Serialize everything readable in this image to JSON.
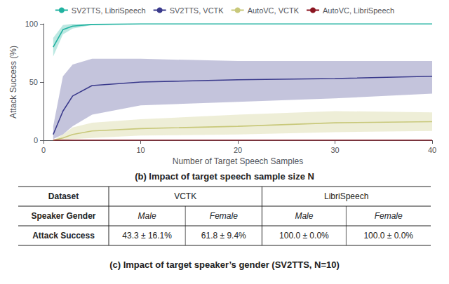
{
  "chart_data": {
    "type": "line",
    "xlabel": "Number of Target Speech Samples",
    "ylabel": "Attack Success (%)",
    "x": [
      1,
      2,
      3,
      5,
      10,
      20,
      30,
      40
    ],
    "series": [
      {
        "name": "SV2TTS, LibriSpeech",
        "color": "#20b2a0",
        "values": [
          80,
          95,
          98,
          99.5,
          100,
          100,
          100,
          100
        ],
        "lower": [
          72,
          91,
          96,
          99,
          100,
          100,
          100,
          100
        ],
        "upper": [
          88,
          99,
          100,
          100,
          100,
          100,
          100,
          100
        ]
      },
      {
        "name": "SV2TTS, VCTK",
        "color": "#3a3a8c",
        "values": [
          5,
          25,
          38,
          47,
          50,
          52,
          53,
          55
        ],
        "lower": [
          1,
          5,
          12,
          22,
          30,
          33,
          36,
          40
        ],
        "upper": [
          12,
          55,
          65,
          70,
          70,
          68,
          68,
          68
        ]
      },
      {
        "name": "AutoVC, VCTK",
        "color": "#c8c87a",
        "values": [
          0,
          2,
          5,
          8,
          10,
          12,
          15,
          16
        ],
        "lower": [
          0,
          0,
          1,
          2,
          4,
          5,
          7,
          8
        ],
        "upper": [
          0,
          5,
          11,
          15,
          18,
          22,
          25,
          24
        ]
      },
      {
        "name": "AutoVC, LibriSpeech",
        "color": "#8b1520",
        "values": [
          0,
          0,
          0,
          0,
          0,
          0,
          0,
          0
        ]
      }
    ],
    "xlim": [
      0,
      40
    ],
    "xticks": [
      0,
      10,
      20,
      30,
      40
    ],
    "ylim": [
      0,
      100
    ],
    "yticks": [
      0,
      50,
      100
    ],
    "grid": false,
    "legend": "top",
    "captions": [
      "(b) Impact of target speech sample size N",
      "(c) Impact of target speaker’s gender (SV2TTS, N=10)"
    ],
    "table": {
      "header": [
        "Dataset",
        "VCTK",
        "LibriSpeech"
      ],
      "rows": [
        [
          "Speaker Gender",
          "Male",
          "Female",
          "Male",
          "Female"
        ],
        [
          "Attack Success",
          "43.3 ± 16.1%",
          "61.8 ± 9.4%",
          "100.0 ± 0.0%",
          "100.0 ± 0.0%"
        ]
      ]
    }
  }
}
